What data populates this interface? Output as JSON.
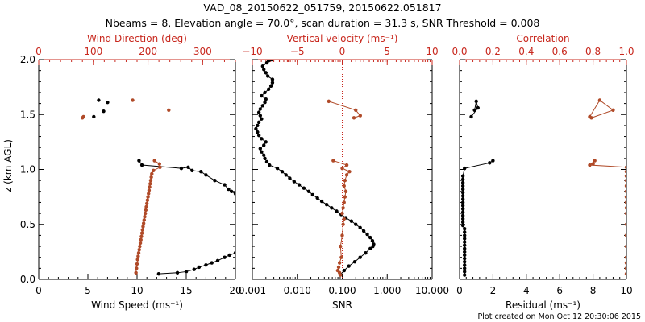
{
  "title_line1": "VAD_08_20150622_051759, 20150622.051817",
  "title_line2": "Nbeams = 8, Elevation angle = 70.0°, scan duration = 31.3 s, SNR Threshold = 0.008",
  "footer": "Plot created on Mon Oct 12 20:30:06 2015",
  "colors": {
    "black": "#000000",
    "red": "#c8281e",
    "brown": "#b04a28"
  },
  "ylabel": "z (km AGL)",
  "chart_data": [
    {
      "type": "scatter",
      "panel": "wind",
      "xlabel": "Wind Speed (ms⁻¹)",
      "xlabel_top": "Wind Direction (deg)",
      "xlim": [
        0,
        20
      ],
      "xlim_top": [
        0,
        360
      ],
      "ylim": [
        0,
        2
      ],
      "xticks": [
        "0",
        "5",
        "10",
        "15",
        "20"
      ],
      "xticks_top": [
        "0",
        "100",
        "200",
        "300"
      ],
      "yticks": [
        "0.0",
        "0.5",
        "1.0",
        "1.5",
        "2.0"
      ],
      "series": [
        {
          "color": "black",
          "x": [
            12.2,
            14.1,
            15.0,
            15.8,
            16.3,
            17.0,
            17.6,
            18.2,
            18.9,
            19.4,
            20.0,
            20.0,
            19.6,
            19.3,
            18.9,
            17.9,
            17.0,
            16.5,
            15.6,
            15.2,
            14.5,
            10.5,
            10.2
          ],
          "y": [
            0.05,
            0.06,
            0.07,
            0.09,
            0.11,
            0.13,
            0.15,
            0.17,
            0.2,
            0.22,
            0.24,
            0.78,
            0.8,
            0.82,
            0.86,
            0.9,
            0.95,
            0.98,
            0.99,
            1.02,
            1.01,
            1.04,
            1.08
          ]
        },
        {
          "color": "black",
          "x": [
            5.6,
            6.6,
            6.1,
            7.0
          ],
          "y": [
            1.48,
            1.53,
            1.63,
            1.61
          ]
        },
        {
          "color": "brown",
          "x_top": [
            212,
            221,
            222,
            210,
            207
          ],
          "y": [
            1.08,
            1.05,
            1.02,
            0.99,
            0.96
          ]
        },
        {
          "color": "brown",
          "x_top": [
            206,
            205,
            204,
            203,
            202,
            201,
            200,
            199,
            198,
            197,
            196,
            195,
            194,
            193,
            192,
            191,
            190,
            189,
            188,
            187,
            186,
            185,
            184,
            183,
            182,
            181,
            180,
            179,
            178
          ],
          "y": [
            0.93,
            0.9,
            0.87,
            0.84,
            0.81,
            0.78,
            0.75,
            0.72,
            0.69,
            0.66,
            0.63,
            0.6,
            0.57,
            0.54,
            0.51,
            0.48,
            0.45,
            0.42,
            0.39,
            0.36,
            0.33,
            0.3,
            0.27,
            0.24,
            0.21,
            0.18,
            0.14,
            0.1,
            0.06
          ]
        },
        {
          "color": "brown",
          "x_top": [
            82,
            172,
            238,
            80
          ],
          "y": [
            1.48,
            1.63,
            1.54,
            1.47
          ]
        }
      ]
    },
    {
      "type": "line",
      "panel": "snr",
      "xlabel": "SNR",
      "xlabel_top": "Vertical velocity (ms⁻¹)",
      "xscale": "log",
      "xlim": [
        0.001,
        10
      ],
      "xlim_top": [
        -10,
        10
      ],
      "xticks": [
        "0.001",
        "0.010",
        "0.100",
        "1.000",
        "10.000"
      ],
      "xticks_top": [
        "−10",
        "−5",
        "0",
        "5",
        "10"
      ],
      "ylim": [
        0,
        2
      ],
      "vline_top": 0,
      "series": [
        {
          "color": "black",
          "x": [
            0.09,
            0.11,
            0.14,
            0.19,
            0.25,
            0.33,
            0.42,
            0.48,
            0.5,
            0.47,
            0.42,
            0.36,
            0.3,
            0.25,
            0.2,
            0.16,
            0.12,
            0.095,
            0.075,
            0.058,
            0.045,
            0.035,
            0.028,
            0.022,
            0.018,
            0.014,
            0.011,
            0.0085,
            0.0068,
            0.0056,
            0.0046,
            0.0036,
            0.0024,
            0.0021,
            0.0019,
            0.0018,
            0.0016,
            0.0015,
            0.0018,
            0.002,
            0.0016,
            0.0014,
            0.0013,
            0.0012,
            0.0013,
            0.0014,
            0.0016,
            0.0015,
            0.0014,
            0.0015,
            0.0017,
            0.0019,
            0.002,
            0.0016,
            0.0019,
            0.0023,
            0.0026,
            0.0028,
            0.0028,
            0.0022,
            0.002,
            0.0018,
            0.0017,
            0.0021,
            0.0023,
            0.0026,
            0.0027
          ],
          "y": [
            0.04,
            0.08,
            0.12,
            0.16,
            0.2,
            0.24,
            0.28,
            0.3,
            0.32,
            0.35,
            0.38,
            0.41,
            0.44,
            0.47,
            0.5,
            0.53,
            0.56,
            0.59,
            0.62,
            0.65,
            0.68,
            0.71,
            0.74,
            0.77,
            0.8,
            0.83,
            0.86,
            0.89,
            0.92,
            0.95,
            0.98,
            1.01,
            1.04,
            1.07,
            1.1,
            1.13,
            1.16,
            1.19,
            1.22,
            1.25,
            1.28,
            1.31,
            1.34,
            1.37,
            1.4,
            1.43,
            1.46,
            1.49,
            1.52,
            1.55,
            1.58,
            1.61,
            1.64,
            1.67,
            1.7,
            1.73,
            1.76,
            1.79,
            1.82,
            1.85,
            1.88,
            1.91,
            1.94,
            1.97,
            1.99,
            2.0,
            2.0
          ]
        },
        {
          "color": "brown",
          "x_top": [
            -1.0,
            0.5,
            0.0,
            0.8,
            0.5,
            0.3,
            0.2,
            0.4,
            0.3,
            0.2,
            0.1,
            0.0,
            0.2,
            0.1,
            0.0,
            -0.2,
            -0.1,
            -0.3,
            -0.4,
            -0.5,
            -0.3,
            -0.2
          ],
          "y": [
            1.08,
            1.04,
            1.01,
            0.98,
            0.95,
            0.9,
            0.85,
            0.8,
            0.75,
            0.7,
            0.65,
            0.6,
            0.55,
            0.5,
            0.4,
            0.3,
            0.2,
            0.15,
            0.11,
            0.08,
            0.06,
            0.04
          ]
        },
        {
          "color": "brown",
          "x_top": [
            -1.5,
            1.5,
            2.0,
            1.3
          ],
          "y": [
            1.62,
            1.54,
            1.49,
            1.47
          ]
        }
      ]
    },
    {
      "type": "line",
      "panel": "residual",
      "xlabel": "Residual (ms⁻¹)",
      "xlabel_top": "Correlation",
      "xlim": [
        0,
        10
      ],
      "xlim_top": [
        0,
        1
      ],
      "xticks": [
        "0",
        "2",
        "4",
        "6",
        "8",
        "10"
      ],
      "xticks_top": [
        "0.0",
        "0.2",
        "0.4",
        "0.6",
        "0.8",
        "1.0"
      ],
      "ylim": [
        0,
        2
      ],
      "series": [
        {
          "color": "black",
          "x": [
            0.3,
            0.3,
            0.3,
            0.3,
            0.3,
            0.3,
            0.3,
            0.3,
            0.3,
            0.3,
            0.3,
            0.3,
            0.3,
            0.3,
            0.3,
            0.2,
            0.2,
            0.2,
            0.2,
            0.2,
            0.2,
            0.2,
            0.2,
            0.2,
            0.2,
            0.2,
            0.2,
            0.2,
            0.2,
            0.2,
            0.2,
            0.3,
            1.8,
            2.0
          ],
          "y": [
            0.04,
            0.07,
            0.1,
            0.13,
            0.16,
            0.19,
            0.22,
            0.25,
            0.28,
            0.31,
            0.34,
            0.37,
            0.4,
            0.43,
            0.46,
            0.49,
            0.52,
            0.55,
            0.58,
            0.61,
            0.64,
            0.67,
            0.7,
            0.73,
            0.76,
            0.79,
            0.82,
            0.85,
            0.88,
            0.91,
            0.94,
            1.01,
            1.06,
            1.08
          ]
        },
        {
          "color": "black",
          "x": [
            0.7,
            1.1,
            1.0,
            0.9
          ],
          "y": [
            1.48,
            1.56,
            1.62,
            1.54
          ]
        },
        {
          "color": "brown",
          "x_top": [
            0.8,
            0.81,
            0.78,
            1.0,
            1.0,
            1.0,
            1.0,
            1.0,
            1.0,
            1.0,
            1.0,
            1.0,
            1.0,
            1.0,
            1.0,
            1.0,
            1.0,
            1.0,
            1.0,
            1.0
          ],
          "y": [
            1.05,
            1.08,
            1.04,
            1.02,
            0.98,
            0.94,
            0.9,
            0.85,
            0.8,
            0.75,
            0.7,
            0.65,
            0.6,
            0.5,
            0.4,
            0.3,
            0.2,
            0.15,
            0.1,
            0.05
          ]
        },
        {
          "color": "brown",
          "x_top": [
            0.78,
            0.84,
            0.92,
            0.79
          ],
          "y": [
            1.48,
            1.63,
            1.54,
            1.47
          ]
        }
      ]
    }
  ]
}
